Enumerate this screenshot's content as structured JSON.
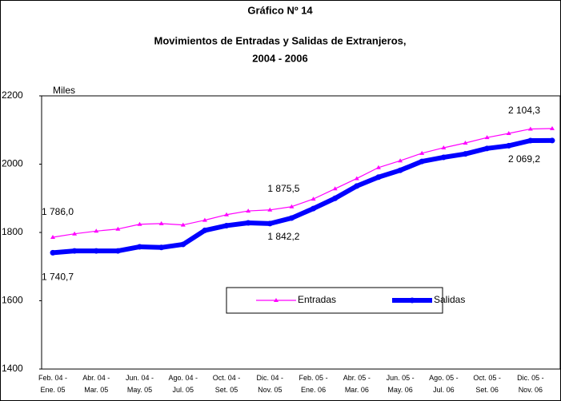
{
  "chart_data": {
    "type": "line",
    "title": [
      "Gráfico Nº 14",
      "Movimientos de Entradas y Salidas de Extranjeros,",
      "2004 - 2006"
    ],
    "y_axis_label": "Miles",
    "categories": [
      "Feb. 04 - Ene. 05",
      null,
      "Abr. 04 - Mar. 05",
      null,
      "Jun. 04 - May. 05",
      null,
      "Ago. 04 - Jul. 05",
      null,
      "Oct. 04 - Set. 05",
      null,
      "Dic. 04 - Nov. 05",
      null,
      "Feb. 05 - Ene. 06",
      null,
      "Abr. 05 - Mar. 06",
      null,
      "Jun. 05 - May. 06",
      null,
      "Ago. 05 - Jul. 06",
      null,
      "Oct. 05 - Set. 06",
      null,
      "Dic. 05 - Nov. 06",
      null
    ],
    "ylim": [
      1400,
      2200
    ],
    "yticks": [
      1400,
      1600,
      1800,
      2000,
      2200
    ],
    "grid": false,
    "legend": "inside",
    "series": [
      {
        "name": "Entradas",
        "color": "#ff00ff",
        "values": [
          1786.0,
          1796,
          1804,
          1810,
          1824,
          1826,
          1822,
          1836,
          1852,
          1863,
          1866,
          1875.5,
          1898,
          1928,
          1958,
          1990,
          2010,
          2032,
          2048,
          2062,
          2078,
          2090,
          2103,
          2104.3
        ],
        "value_labels": [
          "1 786,0",
          null,
          null,
          null,
          null,
          null,
          null,
          null,
          null,
          null,
          null,
          "1 875,5",
          null,
          null,
          null,
          null,
          null,
          null,
          null,
          null,
          null,
          null,
          null,
          "2 104,3"
        ]
      },
      {
        "name": "Salidas",
        "color": "#0000ff",
        "values": [
          1740.7,
          1746,
          1746,
          1746,
          1758,
          1756,
          1765,
          1806,
          1820,
          1828,
          1826,
          1842.2,
          1870,
          1900,
          1936,
          1962,
          1982,
          2008,
          2020,
          2030,
          2046,
          2054,
          2069,
          2069.2
        ],
        "value_labels": [
          "1 740,7",
          null,
          null,
          null,
          null,
          null,
          null,
          null,
          null,
          null,
          null,
          "1 842,2",
          null,
          null,
          null,
          null,
          null,
          null,
          null,
          null,
          null,
          null,
          null,
          "2 069,2"
        ]
      }
    ]
  }
}
